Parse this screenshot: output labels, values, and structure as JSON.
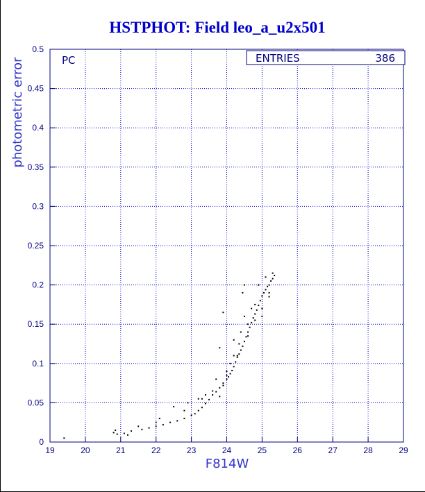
{
  "chart_data": {
    "type": "scatter",
    "title": "HSTPHOT: Field leo_a_u2x501",
    "xlabel": "F814W",
    "ylabel": "photometric error",
    "annotation": "PC",
    "stats": {
      "label": "ENTRIES",
      "value": "386"
    },
    "xlim": [
      19,
      29
    ],
    "ylim": [
      0,
      0.5
    ],
    "x_ticks": [
      "19",
      "20",
      "21",
      "22",
      "23",
      "24",
      "25",
      "26",
      "27",
      "28",
      "29"
    ],
    "y_ticks": [
      "0",
      "0.05",
      "0.1",
      "0.15",
      "0.2",
      "0.25",
      "0.3",
      "0.35",
      "0.4",
      "0.45",
      "0.5"
    ],
    "grid": true,
    "colors": {
      "title": "#0000cc",
      "axis_label": "#3333cc",
      "grid": "#0000cc",
      "points": "#000000",
      "ticks": "#000080"
    },
    "points_x": [
      19.4,
      20.8,
      20.9,
      21.1,
      21.3,
      21.6,
      21.8,
      22.0,
      22.2,
      22.4,
      22.6,
      22.8,
      23.0,
      23.1,
      23.2,
      23.3,
      23.4,
      23.5,
      23.6,
      23.7,
      23.8,
      23.9,
      24.0,
      24.05,
      24.1,
      24.15,
      24.2,
      24.25,
      24.3,
      24.35,
      24.4,
      24.45,
      24.5,
      24.55,
      24.6,
      24.65,
      24.7,
      24.75,
      24.8,
      24.85,
      24.9,
      24.95,
      25.0,
      25.05,
      25.1,
      25.15,
      25.2,
      25.25,
      25.3,
      25.35,
      22.1,
      22.5,
      22.9,
      23.2,
      23.4,
      23.6,
      23.8,
      23.9,
      24.0,
      24.1,
      24.2,
      24.3,
      24.4,
      24.5,
      24.6,
      24.7,
      24.8,
      24.9,
      25.0,
      25.1,
      25.2,
      24.45,
      23.9,
      24.5,
      24.35,
      23.8,
      24.9,
      21.5,
      22.0,
      22.8,
      23.3,
      23.7,
      24.0,
      24.2,
      24.6,
      24.8,
      25.0,
      25.2,
      25.3,
      20.85,
      21.2
    ],
    "points_y": [
      0.005,
      0.012,
      0.01,
      0.011,
      0.014,
      0.016,
      0.018,
      0.02,
      0.022,
      0.025,
      0.027,
      0.03,
      0.034,
      0.036,
      0.04,
      0.044,
      0.049,
      0.054,
      0.06,
      0.064,
      0.069,
      0.075,
      0.08,
      0.083,
      0.087,
      0.091,
      0.096,
      0.102,
      0.108,
      0.112,
      0.117,
      0.122,
      0.128,
      0.134,
      0.14,
      0.146,
      0.152,
      0.158,
      0.163,
      0.168,
      0.174,
      0.18,
      0.186,
      0.19,
      0.194,
      0.198,
      0.2,
      0.205,
      0.208,
      0.212,
      0.03,
      0.045,
      0.05,
      0.055,
      0.06,
      0.065,
      0.058,
      0.072,
      0.085,
      0.1,
      0.13,
      0.11,
      0.14,
      0.16,
      0.15,
      0.17,
      0.175,
      0.2,
      0.16,
      0.21,
      0.185,
      0.19,
      0.165,
      0.2,
      0.125,
      0.12,
      0.2,
      0.02,
      0.025,
      0.04,
      0.055,
      0.08,
      0.09,
      0.11,
      0.135,
      0.155,
      0.17,
      0.19,
      0.215,
      0.015,
      0.009
    ]
  }
}
